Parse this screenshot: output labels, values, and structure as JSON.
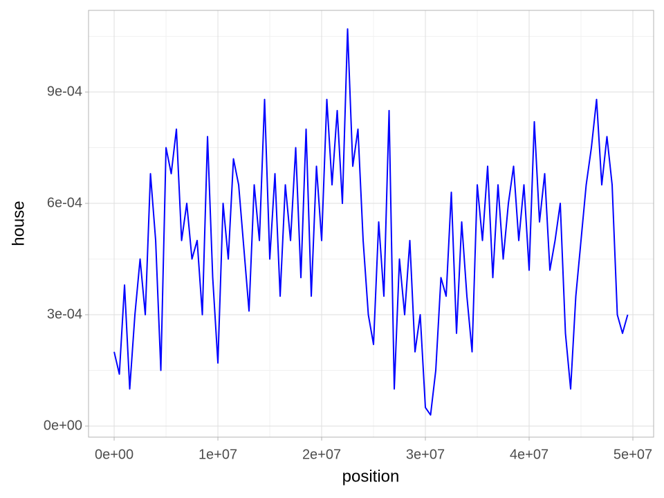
{
  "chart_data": {
    "type": "line",
    "x_label": "position",
    "y_label": "house",
    "xlim": [
      -2470000,
      52000000
    ],
    "ylim": [
      -2.98e-05,
      0.00112
    ],
    "xticks": [
      {
        "value": 0,
        "label": "0e+00"
      },
      {
        "value": 10000000,
        "label": "1e+07"
      },
      {
        "value": 20000000,
        "label": "2e+07"
      },
      {
        "value": 30000000,
        "label": "3e+07"
      },
      {
        "value": 40000000,
        "label": "4e+07"
      },
      {
        "value": 50000000,
        "label": "5e+07"
      }
    ],
    "yticks": [
      {
        "value": 0,
        "label": "0e+00"
      },
      {
        "value": 0.0003,
        "label": "3e-04"
      },
      {
        "value": 0.0006,
        "label": "6e-04"
      },
      {
        "value": 0.0009,
        "label": "9e-04"
      }
    ],
    "grid": true,
    "x": [
      0,
      500000,
      1000000,
      1500000,
      2000000,
      2500000,
      3000000,
      3500000,
      4000000,
      4500000,
      5000000,
      5500000,
      6000000,
      6500000,
      7000000,
      7500000,
      8000000,
      8500000,
      9000000,
      9500000,
      10000000,
      10500000,
      11000000,
      11500000,
      12000000,
      12500000,
      13000000,
      13500000,
      14000000,
      14500000,
      15000000,
      15500000,
      16000000,
      16500000,
      17000000,
      17500000,
      18000000,
      18500000,
      19000000,
      19500000,
      20000000,
      20500000,
      21000000,
      21500000,
      22000000,
      22500000,
      23000000,
      23500000,
      24000000,
      24500000,
      25000000,
      25500000,
      26000000,
      26500000,
      27000000,
      27500000,
      28000000,
      28500000,
      29000000,
      29500000,
      30000000,
      30500000,
      31000000,
      31500000,
      32000000,
      32500000,
      33000000,
      33500000,
      34000000,
      34500000,
      35000000,
      35500000,
      36000000,
      36500000,
      37000000,
      37500000,
      38000000,
      38500000,
      39000000,
      39500000,
      40000000,
      40500000,
      41000000,
      41500000,
      42000000,
      42500000,
      43000000,
      43500000,
      44000000,
      44500000,
      45000000,
      45500000,
      46000000,
      46500000,
      47000000,
      47500000,
      48000000,
      48500000,
      49000000,
      49500000
    ],
    "series": [
      {
        "name": "house",
        "color": "#0000ff",
        "values": [
          0.0002,
          0.00014,
          0.00038,
          0.0001,
          0.0003,
          0.00045,
          0.0003,
          0.00068,
          0.0005,
          0.00015,
          0.00075,
          0.00068,
          0.0008,
          0.0005,
          0.0006,
          0.00045,
          0.0005,
          0.0003,
          0.00078,
          0.0004,
          0.00017,
          0.0006,
          0.00045,
          0.00072,
          0.00065,
          0.00048,
          0.00031,
          0.00065,
          0.0005,
          0.00088,
          0.00045,
          0.00068,
          0.00035,
          0.00065,
          0.0005,
          0.00075,
          0.0004,
          0.0008,
          0.00035,
          0.0007,
          0.0005,
          0.00088,
          0.00065,
          0.00085,
          0.0006,
          0.00107,
          0.0007,
          0.0008,
          0.0005,
          0.0003,
          0.00022,
          0.00055,
          0.00035,
          0.00085,
          0.0001,
          0.00045,
          0.0003,
          0.0005,
          0.0002,
          0.0003,
          5e-05,
          3e-05,
          0.00015,
          0.0004,
          0.00035,
          0.00063,
          0.00025,
          0.00055,
          0.00035,
          0.0002,
          0.00065,
          0.0005,
          0.0007,
          0.0004,
          0.00065,
          0.00045,
          0.0006,
          0.0007,
          0.0005,
          0.00065,
          0.00042,
          0.00082,
          0.00055,
          0.00068,
          0.00042,
          0.0005,
          0.0006,
          0.00025,
          0.0001,
          0.00035,
          0.0005,
          0.00065,
          0.00075,
          0.00088,
          0.00065,
          0.00078,
          0.00065,
          0.0003,
          0.00025,
          0.0003
        ]
      }
    ]
  }
}
